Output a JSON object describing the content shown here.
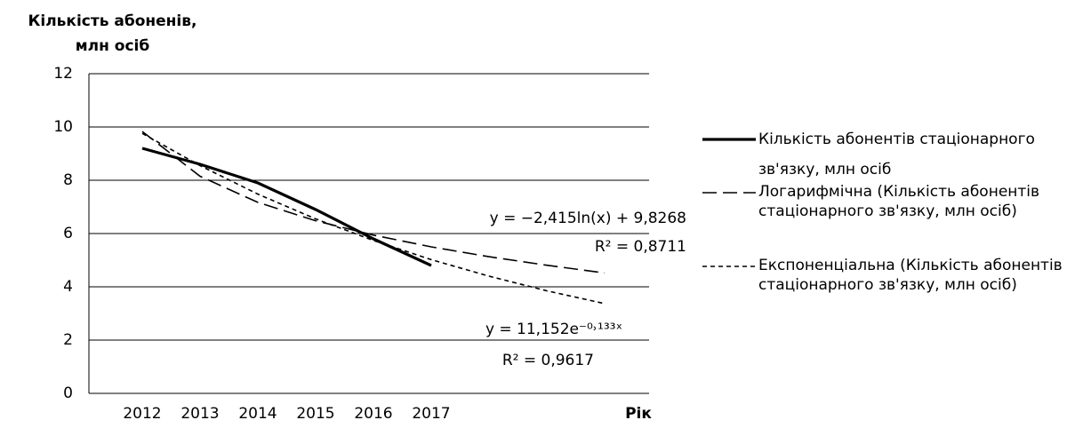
{
  "chart_data": {
    "type": "line",
    "y_label": "Кількість абоненів,\nмлн осіб",
    "x_label": "Рік",
    "categories": [
      "2012",
      "2013",
      "2014",
      "2015",
      "2016",
      "2017",
      null,
      null,
      null
    ],
    "series": [
      {
        "name": "Кількість абонентів стаціонарного зв'язку, млн осіб",
        "color": "#000000",
        "dash": "solid",
        "values": [
          9.2,
          8.6,
          7.9,
          6.9,
          5.8,
          4.8,
          null,
          null,
          null
        ]
      },
      {
        "name": "Логарифмічна (Кількість абонентів стаціонарного зв'язку, млн осіб)",
        "color": "#000000",
        "dash": "dashed",
        "values": [
          9.83,
          8.15,
          7.17,
          6.48,
          5.94,
          5.5,
          5.13,
          4.81,
          4.52
        ]
      },
      {
        "name": "Експоненціальна (Кількість абонентів стаціонарного зв'язку, млн осіб)",
        "color": "#000000",
        "dash": "dotted",
        "values": [
          9.76,
          8.55,
          7.48,
          6.55,
          5.74,
          5.02,
          4.4,
          3.85,
          3.37
        ]
      }
    ],
    "annotations": [
      "y = −2,415ln(x) + 9,8268",
      "R² = 0,8711",
      "y = 11,152e⁻⁰˒¹³³ˣ",
      "R² = 0,9617"
    ],
    "ylim": [
      0,
      12
    ],
    "yticks": [
      0,
      2,
      4,
      6,
      8,
      10,
      12
    ],
    "grid": true
  }
}
